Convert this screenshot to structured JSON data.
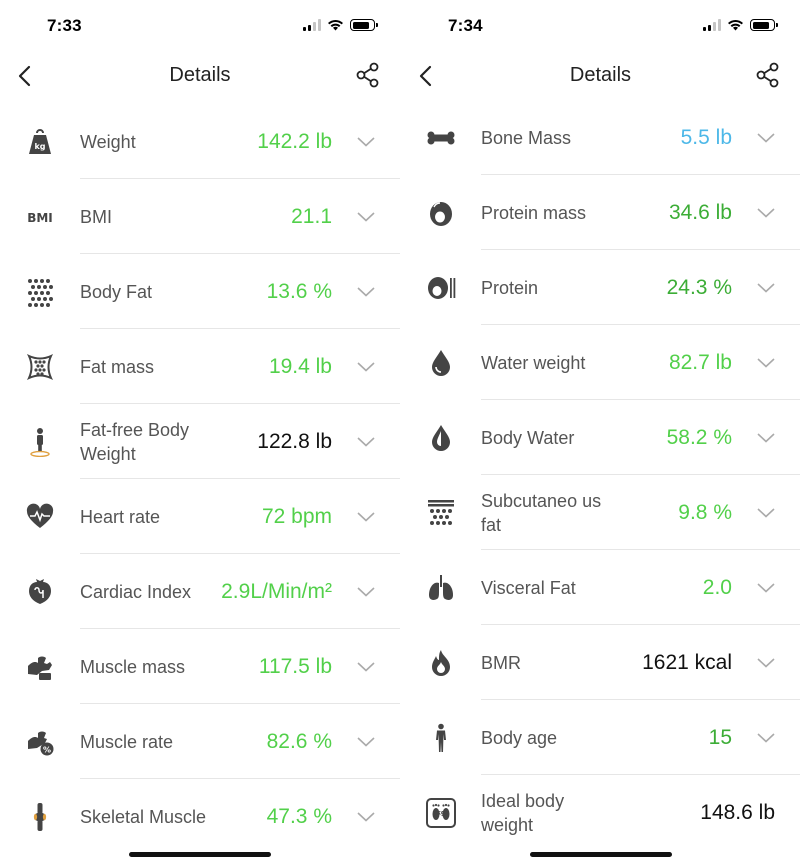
{
  "screens": [
    {
      "status": {
        "time": "7:33"
      },
      "nav": {
        "title": "Details"
      },
      "metrics": [
        {
          "icon": "weight-kg-icon",
          "label": "Weight",
          "value": "142.2 lb",
          "color": "#52d04a"
        },
        {
          "icon": "bmi-icon",
          "label": "BMI",
          "value": "21.1",
          "color": "#52d04a",
          "icon_text": "BMI"
        },
        {
          "icon": "body-fat-icon",
          "label": "Body Fat",
          "value": "13.6 %",
          "color": "#52d04a"
        },
        {
          "icon": "fat-mass-icon",
          "label": "Fat mass",
          "value": "19.4 lb",
          "color": "#52d04a"
        },
        {
          "icon": "fat-free-body-weight-icon",
          "label": "Fat-free Body Weight",
          "value": "122.8 lb",
          "color": "#111111"
        },
        {
          "icon": "heart-rate-icon",
          "label": "Heart rate",
          "value": "72 bpm",
          "color": "#52d04a"
        },
        {
          "icon": "cardiac-index-icon",
          "label": "Cardiac Index",
          "value": "2.9L/Min/m²",
          "color": "#52d04a"
        },
        {
          "icon": "muscle-mass-icon",
          "label": "Muscle mass",
          "value": "117.5 lb",
          "color": "#52d04a"
        },
        {
          "icon": "muscle-rate-icon",
          "label": "Muscle rate",
          "value": "82.6 %",
          "color": "#52d04a"
        },
        {
          "icon": "skeletal-muscle-icon",
          "label": "Skeletal Muscle",
          "value": "47.3 %",
          "color": "#52d04a"
        }
      ]
    },
    {
      "status": {
        "time": "7:34"
      },
      "nav": {
        "title": "Details"
      },
      "metrics": [
        {
          "icon": "bone-mass-icon",
          "label": "Bone Mass",
          "value": "5.5 lb",
          "color": "#4db8e8"
        },
        {
          "icon": "protein-mass-icon",
          "label": "Protein mass",
          "value": "34.6 lb",
          "color": "#3cad36"
        },
        {
          "icon": "protein-icon",
          "label": "Protein",
          "value": "24.3 %",
          "color": "#3cad36"
        },
        {
          "icon": "water-weight-icon",
          "label": "Water weight",
          "value": "82.7 lb",
          "color": "#52d04a"
        },
        {
          "icon": "body-water-icon",
          "label": "Body Water",
          "value": "58.2 %",
          "color": "#52d04a"
        },
        {
          "icon": "subcutaneous-fat-icon",
          "label": "Subcutaneo us fat",
          "value": "9.8 %",
          "color": "#52d04a"
        },
        {
          "icon": "lungs-icon",
          "label": "Visceral Fat",
          "value": "2.0",
          "color": "#52d04a"
        },
        {
          "icon": "flame-icon",
          "label": "BMR",
          "value": "1621 kcal",
          "color": "#111111"
        },
        {
          "icon": "body-figure-icon",
          "label": "Body age",
          "value": "15",
          "color": "#3cad36"
        },
        {
          "icon": "ideal-weight-feet-icon",
          "label": "Ideal body weight",
          "value": "148.6 lb",
          "color": "#111111"
        }
      ]
    }
  ]
}
